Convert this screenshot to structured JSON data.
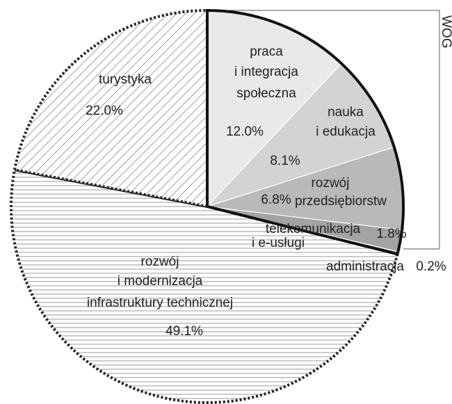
{
  "chart_data": {
    "type": "pie",
    "categories": [
      "praca\ni integracja\nspołeczna",
      "nauka\ni edukacja",
      "rozwój\nprzedsiębiorstw",
      "telekomunikacja\ni e-usługi",
      "administracja",
      "rozwój\ni modernizacja\ninfrastruktury technicznej",
      "turystyka"
    ],
    "values": [
      12.0,
      8.1,
      6.8,
      1.8,
      0.2,
      49.1,
      22.0
    ],
    "value_labels": [
      "12.0%",
      "8.1%",
      "6.8%",
      "1.8%",
      "0.2%",
      "49.1%",
      "22.0%"
    ],
    "colors": [
      "#e9e9e9",
      "#d3d3d3",
      "#b9b9b9",
      "#a3a3a3",
      "#8a8a8a",
      "url(#hlines)",
      "url(#diag)"
    ],
    "group_label": "WOG"
  }
}
